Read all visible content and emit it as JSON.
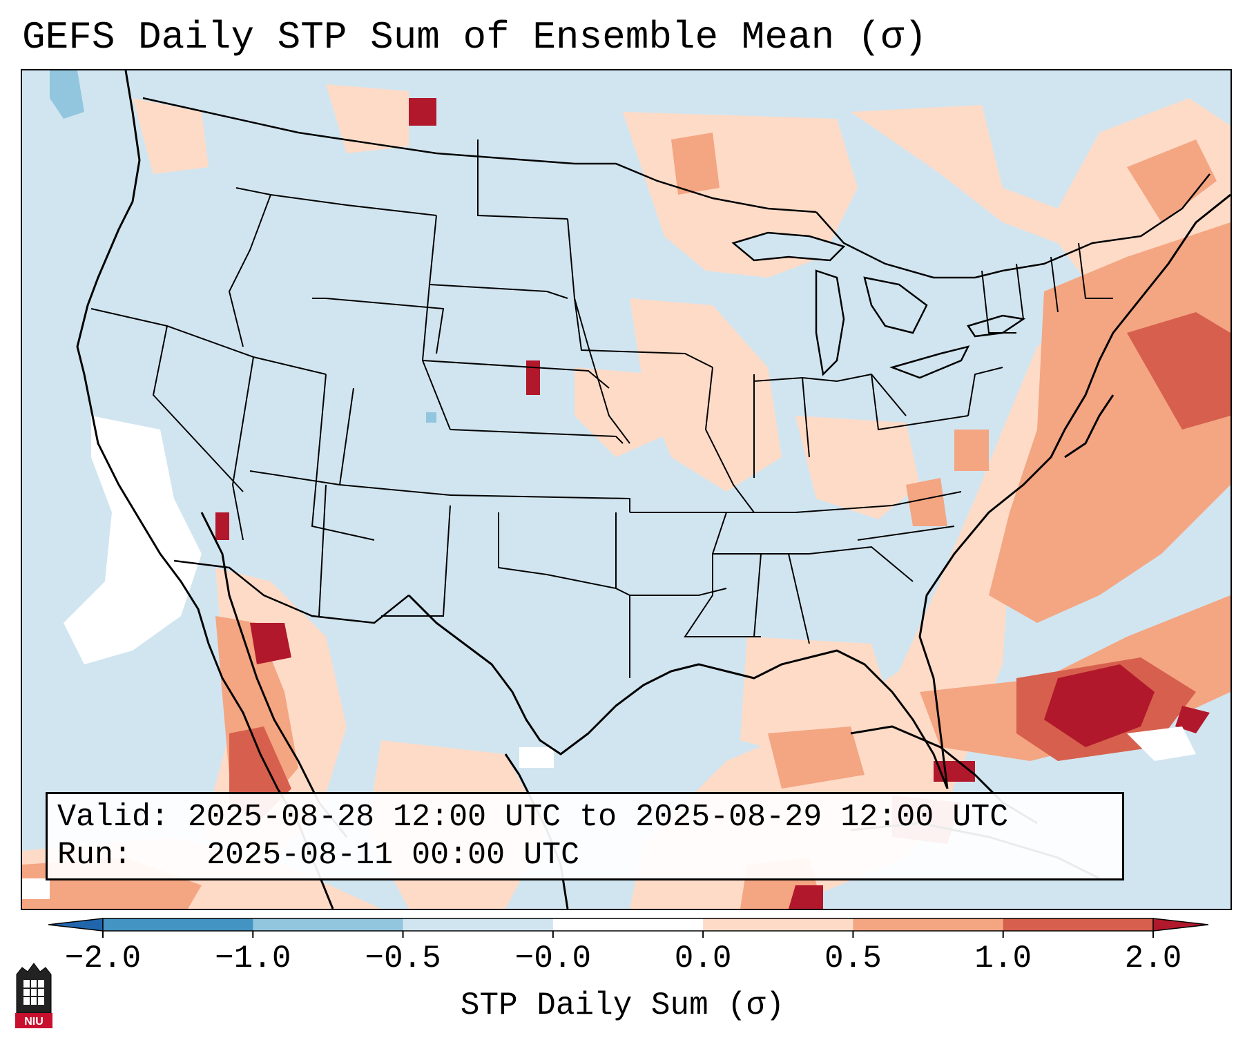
{
  "title": "GEFS Daily STP Sum of Ensemble Mean (σ)",
  "info": {
    "valid_label": "Valid:",
    "valid_value": "2025-08-28 12:00 UTC to 2025-08-29 12:00 UTC",
    "run_label": "Run:",
    "run_value": "2025-08-11 00:00 UTC"
  },
  "colorbar": {
    "label": "STP Daily Sum (σ)",
    "ticks": [
      "−2.0",
      "−1.0",
      "−0.5",
      "−0.0",
      "0.0",
      "0.5",
      "1.0",
      "2.0"
    ],
    "colors": [
      "#2166ac",
      "#4393c3",
      "#92c5de",
      "#d1e5f0",
      "#ffffff",
      "#fddbc7",
      "#f4a582",
      "#d6604d",
      "#b2182b"
    ]
  },
  "map": {
    "background_color": "#d1e5f0",
    "region": "Contiguous United States, southern Canada, northern Mexico, Gulf of Mexico, western Atlantic",
    "highlights": [
      {
        "area": "Western Atlantic off Southeast US coast",
        "level": "σ > 2.0"
      },
      {
        "area": "Northern Mexico / Gulf of California",
        "level": "1.0 to 2.0"
      },
      {
        "area": "Northeast US and Atlantic Canada",
        "level": "0.5 to 1.0"
      },
      {
        "area": "Pacific Ocean west of Baja California",
        "level": "−0.0 to 0.0"
      }
    ]
  },
  "logo_text": "NIU"
}
